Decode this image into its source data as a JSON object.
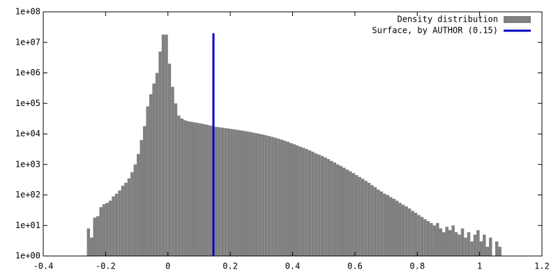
{
  "chart_data": {
    "type": "histogram",
    "log_y": true,
    "legend": "top-right",
    "xlim": [
      -0.4,
      1.2
    ],
    "xticks": [
      -0.4,
      -0.2,
      0,
      0.2,
      0.4,
      0.6,
      0.8,
      1,
      1.2
    ],
    "ylim": [
      1,
      100000000
    ],
    "yticks": [
      {
        "value": 1,
        "label": "1e+00"
      },
      {
        "value": 10,
        "label": "1e+01"
      },
      {
        "value": 100,
        "label": "1e+02"
      },
      {
        "value": 1000,
        "label": "1e+03"
      },
      {
        "value": 10000,
        "label": "1e+04"
      },
      {
        "value": 100000,
        "label": "1e+05"
      },
      {
        "value": 1000000,
        "label": "1e+06"
      },
      {
        "value": 10000000,
        "label": "1e+07"
      },
      {
        "value": 100000000,
        "label": "1e+08"
      }
    ],
    "series": [
      {
        "name": "Density distribution",
        "color": "#808080",
        "bins": [
          -0.26,
          -0.25,
          -0.24,
          -0.23,
          -0.22,
          -0.21,
          -0.2,
          -0.19,
          -0.18,
          -0.17,
          -0.16,
          -0.15,
          -0.14,
          -0.13,
          -0.12,
          -0.11,
          -0.1,
          -0.09,
          -0.08,
          -0.07,
          -0.06,
          -0.05,
          -0.04,
          -0.03,
          -0.02,
          -0.01,
          0,
          0.01,
          0.02,
          0.03,
          0.04,
          0.05,
          0.06,
          0.07,
          0.08,
          0.09,
          0.1,
          0.11,
          0.12,
          0.13,
          0.14,
          0.15,
          0.16,
          0.17,
          0.18,
          0.19,
          0.2,
          0.21,
          0.22,
          0.23,
          0.24,
          0.25,
          0.26,
          0.27,
          0.28,
          0.29,
          0.3,
          0.31,
          0.32,
          0.33,
          0.34,
          0.35,
          0.36,
          0.37,
          0.38,
          0.39,
          0.4,
          0.41,
          0.42,
          0.43,
          0.44,
          0.45,
          0.46,
          0.47,
          0.48,
          0.49,
          0.5,
          0.51,
          0.52,
          0.53,
          0.54,
          0.55,
          0.56,
          0.57,
          0.58,
          0.59,
          0.6,
          0.61,
          0.62,
          0.63,
          0.64,
          0.65,
          0.66,
          0.67,
          0.68,
          0.69,
          0.7,
          0.71,
          0.72,
          0.73,
          0.74,
          0.75,
          0.76,
          0.77,
          0.78,
          0.79,
          0.8,
          0.81,
          0.82,
          0.83,
          0.84,
          0.85,
          0.86,
          0.87,
          0.88,
          0.89,
          0.9,
          0.91,
          0.92,
          0.93,
          0.94,
          0.95,
          0.96,
          0.97,
          0.98,
          0.99,
          1,
          1.01,
          1.02,
          1.03,
          1.04,
          1.05,
          1.06,
          1.07
        ],
        "values": [
          8,
          4,
          18,
          20,
          40,
          50,
          55,
          65,
          90,
          110,
          140,
          200,
          250,
          350,
          560,
          1000,
          2200,
          6300,
          18000,
          80000,
          200000,
          450000,
          1000000,
          5000000,
          18000000,
          18000000,
          2000000,
          350000,
          100000,
          40000,
          32000,
          28000,
          26000,
          25000,
          24000,
          23000,
          22000,
          21000,
          20000,
          19000,
          18000,
          17000,
          16500,
          16000,
          15500,
          15000,
          14500,
          14000,
          13500,
          13000,
          12500,
          12000,
          11500,
          11000,
          10500,
          10000,
          9500,
          9000,
          8500,
          8000,
          7500,
          7000,
          6500,
          6000,
          5500,
          5000,
          4600,
          4200,
          3800,
          3500,
          3200,
          2900,
          2600,
          2300,
          2100,
          1900,
          1700,
          1500,
          1300,
          1150,
          1000,
          900,
          780,
          680,
          600,
          520,
          450,
          390,
          340,
          290,
          250,
          210,
          180,
          150,
          130,
          110,
          100,
          85,
          75,
          65,
          55,
          48,
          42,
          36,
          30,
          26,
          22,
          19,
          16,
          14,
          12,
          10,
          12,
          8,
          6,
          9,
          7,
          10,
          6,
          5,
          8,
          4,
          6,
          3,
          5,
          7,
          3,
          5,
          2,
          4,
          1,
          3,
          2
        ]
      },
      {
        "name": "Surface, by AUTHOR (0.15)",
        "color": "#0000c0",
        "type": "line",
        "x": [
          0.146,
          0.146
        ],
        "values": [
          1,
          20000000
        ]
      }
    ]
  }
}
